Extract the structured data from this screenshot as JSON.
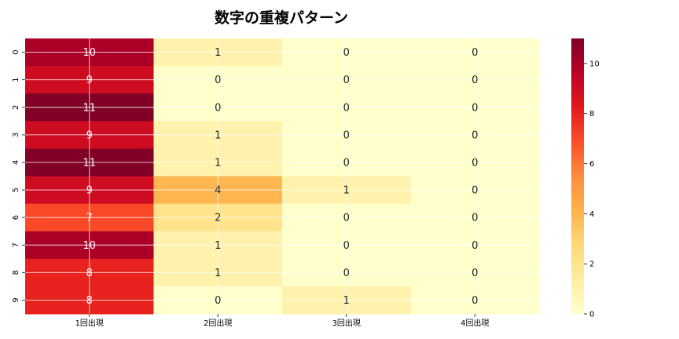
{
  "chart_data": {
    "type": "heatmap",
    "title": "数字の重複パターン",
    "xlabel": "",
    "ylabel": "",
    "columns": [
      "1回出現",
      "2回出現",
      "3回出現",
      "4回出現"
    ],
    "rows": [
      "0",
      "1",
      "2",
      "3",
      "4",
      "5",
      "6",
      "7",
      "8",
      "9"
    ],
    "values": [
      [
        10,
        1,
        0,
        0
      ],
      [
        9,
        0,
        0,
        0
      ],
      [
        11,
        0,
        0,
        0
      ],
      [
        9,
        1,
        0,
        0
      ],
      [
        11,
        1,
        0,
        0
      ],
      [
        9,
        4,
        1,
        0
      ],
      [
        7,
        2,
        0,
        0
      ],
      [
        10,
        1,
        0,
        0
      ],
      [
        8,
        1,
        0,
        0
      ],
      [
        8,
        0,
        1,
        0
      ]
    ],
    "colorbar": {
      "range": [
        0,
        11
      ],
      "ticks": [
        0,
        2,
        4,
        6,
        8,
        10
      ],
      "colormap": "YlOrRd",
      "colormap_stops": [
        "#ffffcc",
        "#ffeda0",
        "#fed976",
        "#feb24c",
        "#fd8d3c",
        "#fc4e2a",
        "#e31a1c",
        "#bd0026",
        "#800026"
      ]
    },
    "grid": true,
    "annotated": true
  }
}
